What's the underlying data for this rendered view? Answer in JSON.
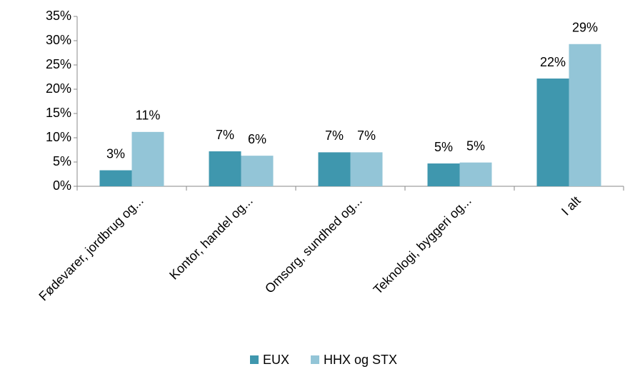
{
  "chart_data": {
    "type": "bar",
    "categories": [
      "Fødevarer, jordbrug og...",
      "Kontor, handel og...",
      "Omsorg, sundhed og...",
      "Teknologi, byggeri og...",
      "I alt"
    ],
    "series": [
      {
        "name": "EUX",
        "color": "#3f97ae",
        "values": [
          3.3,
          7.2,
          7.0,
          4.7,
          22.2
        ],
        "value_labels": [
          "3%",
          "7%",
          "7%",
          "5%",
          "22%"
        ]
      },
      {
        "name": "HHX og STX",
        "color": "#93c5d7",
        "values": [
          11.2,
          6.3,
          7.0,
          4.9,
          29.3
        ],
        "value_labels": [
          "11%",
          "6%",
          "7%",
          "5%",
          "29%"
        ]
      }
    ],
    "ylim": [
      0,
      35
    ],
    "yticks": [
      {
        "value": 0,
        "label": "0%"
      },
      {
        "value": 5,
        "label": "5%"
      },
      {
        "value": 10,
        "label": "10%"
      },
      {
        "value": 15,
        "label": "15%"
      },
      {
        "value": 20,
        "label": "20%"
      },
      {
        "value": 25,
        "label": "25%"
      },
      {
        "value": 30,
        "label": "30%"
      },
      {
        "value": 35,
        "label": "35%"
      }
    ],
    "grid": false,
    "legend": "bottom"
  }
}
